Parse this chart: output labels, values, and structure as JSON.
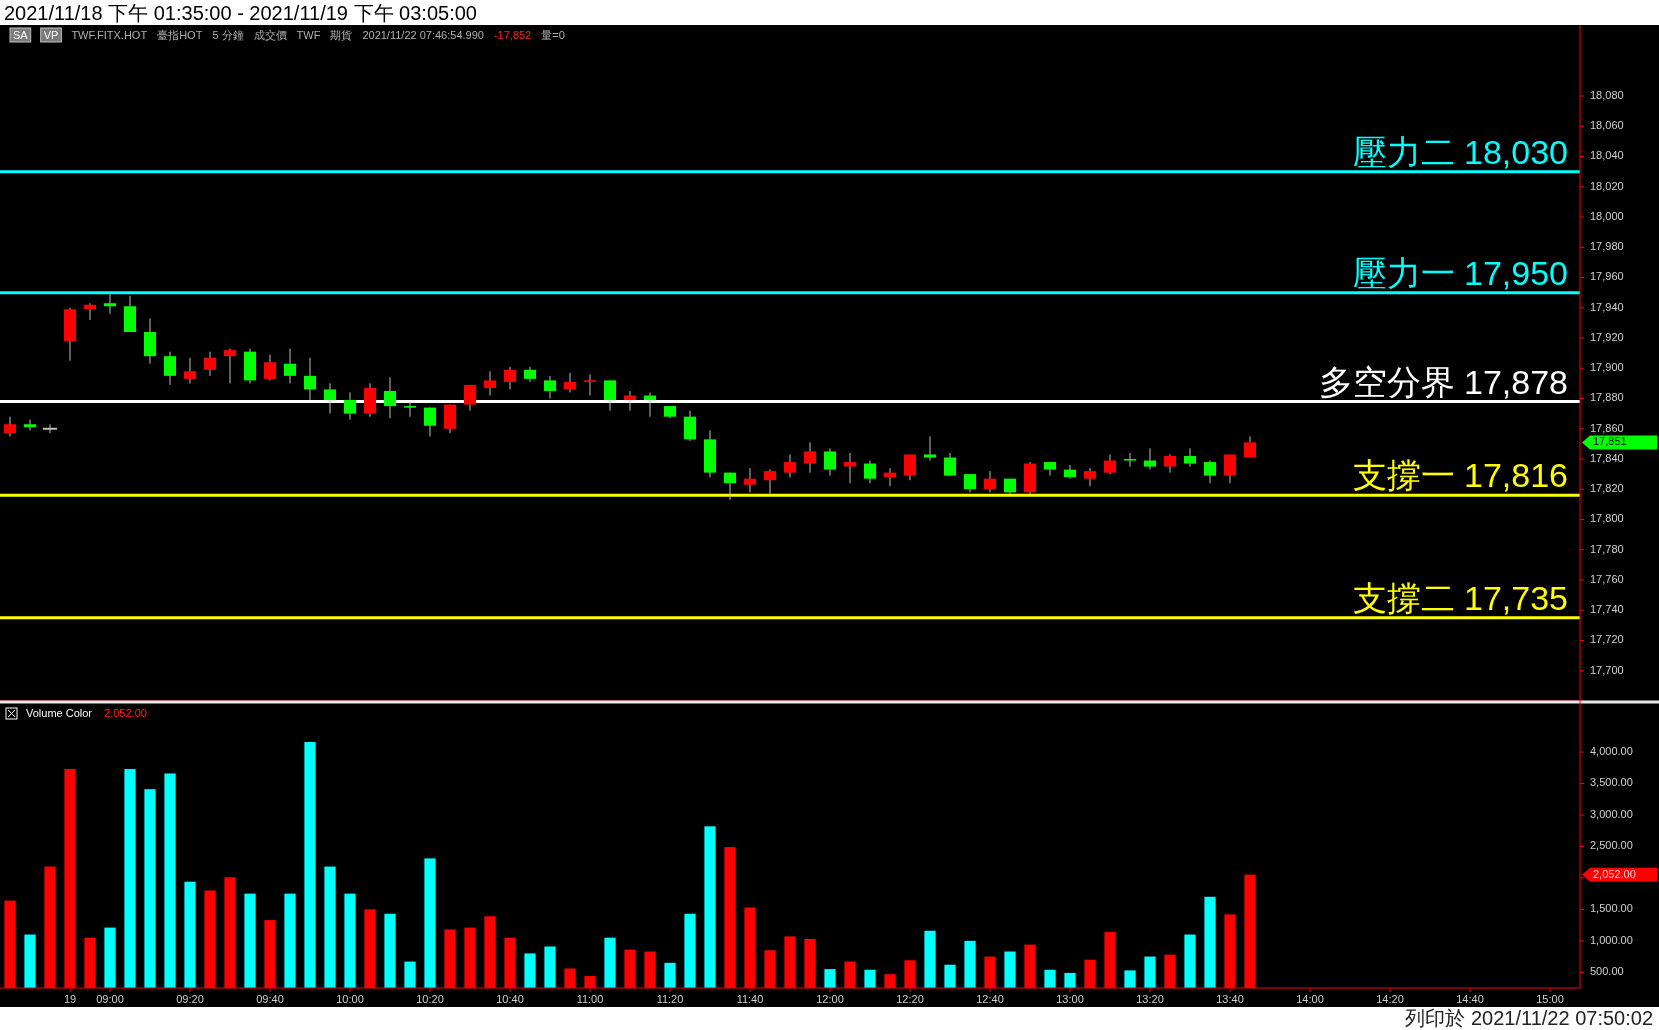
{
  "chart_data": [
    {
      "type": "candlestick",
      "title": "2021/11/18 下午 01:35:00 - 2021/11/19 下午 03:05:00",
      "categories": [
        null,
        null,
        null,
        null,
        null,
        null,
        null,
        null,
        null,
        null,
        null,
        null,
        null,
        null,
        null,
        null,
        null,
        null,
        null,
        null,
        null,
        null,
        null,
        null,
        null,
        null,
        null,
        null,
        null,
        null,
        null,
        null,
        null,
        null,
        null,
        null,
        null,
        null,
        null,
        null,
        null,
        null,
        null,
        null,
        null,
        null,
        null,
        null,
        null,
        null,
        null,
        null,
        null,
        null,
        null,
        null,
        null,
        null,
        null,
        null,
        null,
        null,
        null,
        null,
        null,
        null,
        null,
        null,
        null,
        null,
        null,
        null,
        null,
        null,
        null,
        null,
        null,
        null,
        null
      ],
      "ohlc": [
        [
          17857,
          17868,
          17855,
          17863
        ],
        [
          17863,
          17866,
          17859,
          17861
        ],
        [
          17860,
          17863,
          17857,
          17860
        ],
        [
          17918,
          17940,
          17905,
          17939
        ],
        [
          17939,
          17943,
          17932,
          17942
        ],
        [
          17943,
          17949,
          17936,
          17941
        ],
        [
          17941,
          17948,
          17924,
          17924
        ],
        [
          17924,
          17933,
          17903,
          17908
        ],
        [
          17908,
          17911,
          17889,
          17895
        ],
        [
          17893,
          17907,
          17890,
          17898
        ],
        [
          17899,
          17911,
          17895,
          17907
        ],
        [
          17908,
          17913,
          17890,
          17912
        ],
        [
          17911,
          17913,
          17890,
          17892
        ],
        [
          17893,
          17909,
          17892,
          17904
        ],
        [
          17903,
          17913,
          17890,
          17895
        ],
        [
          17895,
          17907,
          17879,
          17886
        ],
        [
          17886,
          17890,
          17870,
          17879
        ],
        [
          17879,
          17884,
          17866,
          17870
        ],
        [
          17870,
          17890,
          17868,
          17887
        ],
        [
          17885,
          17894,
          17867,
          17875
        ],
        [
          17875,
          17878,
          17868,
          17874
        ],
        [
          17874,
          17874,
          17855,
          17862
        ],
        [
          17860,
          17876,
          17857,
          17876
        ],
        [
          17876,
          17889,
          17872,
          17889
        ],
        [
          17887,
          17898,
          17882,
          17892
        ],
        [
          17891,
          17901,
          17886,
          17899
        ],
        [
          17899,
          17901,
          17891,
          17893
        ],
        [
          17892,
          17895,
          17880,
          17885
        ],
        [
          17886,
          17897,
          17884,
          17891
        ],
        [
          17891,
          17896,
          17882,
          17892
        ],
        [
          17892,
          17892,
          17872,
          17879
        ],
        [
          17879,
          17885,
          17872,
          17882
        ],
        [
          17882,
          17884,
          17868,
          17879
        ],
        [
          17875,
          17875,
          17867,
          17868
        ],
        [
          17868,
          17872,
          17852,
          17853
        ],
        [
          17853,
          17859,
          17828,
          17831
        ],
        [
          17831,
          17831,
          17813,
          17824
        ],
        [
          17823,
          17834,
          17818,
          17827
        ],
        [
          17826,
          17833,
          17817,
          17832
        ],
        [
          17831,
          17843,
          17828,
          17838
        ],
        [
          17837,
          17851,
          17831,
          17845
        ],
        [
          17845,
          17847,
          17829,
          17833
        ],
        [
          17835,
          17844,
          17824,
          17838
        ],
        [
          17837,
          17839,
          17824,
          17827
        ],
        [
          17828,
          17834,
          17822,
          17831
        ],
        [
          17829,
          17843,
          17826,
          17843
        ],
        [
          17843,
          17855,
          17839,
          17841
        ],
        [
          17841,
          17844,
          17829,
          17829
        ],
        [
          17830,
          17830,
          17818,
          17820
        ],
        [
          17820,
          17832,
          17818,
          17827
        ],
        [
          17827,
          17827,
          17817,
          17818
        ],
        [
          17818,
          17838,
          17817,
          17837
        ],
        [
          17838,
          17838,
          17829,
          17833
        ],
        [
          17833,
          17836,
          17827,
          17828
        ],
        [
          17827,
          17834,
          17822,
          17832
        ],
        [
          17831,
          17843,
          17830,
          17839
        ],
        [
          17840,
          17844,
          17835,
          17839
        ],
        [
          17839,
          17847,
          17833,
          17835
        ],
        [
          17835,
          17843,
          17831,
          17842
        ],
        [
          17842,
          17847,
          17835,
          17837
        ],
        [
          17838,
          17839,
          17824,
          17829
        ],
        [
          17829,
          17843,
          17824,
          17843
        ],
        [
          17841,
          17855,
          17841,
          17851
        ],
        null,
        null,
        null,
        null,
        null,
        null,
        null,
        null,
        null,
        null,
        null,
        null,
        null,
        null,
        null,
        null
      ],
      "colors": [
        "#ff0000",
        "#00ff00",
        "#c0c0c0",
        "#ff0000",
        "#ff0000",
        "#00ff00",
        "#00ff00",
        "#00ff00",
        "#00ff00",
        "#ff0000",
        "#ff0000",
        "#ff0000",
        "#00ff00",
        "#ff0000",
        "#00ff00",
        "#00ff00",
        "#00ff00",
        "#00ff00",
        "#ff0000",
        "#00ff00",
        "#00ff00",
        "#00ff00",
        "#ff0000",
        "#ff0000",
        "#ff0000",
        "#ff0000",
        "#00ff00",
        "#00ff00",
        "#ff0000",
        "#ff0000",
        "#00ff00",
        "#ff0000",
        "#00ff00",
        "#00ff00",
        "#00ff00",
        "#00ff00",
        "#00ff00",
        "#ff0000",
        "#ff0000",
        "#ff0000",
        "#ff0000",
        "#00ff00",
        "#ff0000",
        "#00ff00",
        "#ff0000",
        "#ff0000",
        "#00ff00",
        "#00ff00",
        "#00ff00",
        "#ff0000",
        "#00ff00",
        "#ff0000",
        "#00ff00",
        "#00ff00",
        "#ff0000",
        "#ff0000",
        "#00ff00",
        "#00ff00",
        "#ff0000",
        "#00ff00",
        "#00ff00",
        "#ff0000",
        "#ff0000",
        null,
        null,
        null,
        null,
        null,
        null,
        null,
        null,
        null,
        null,
        null,
        null,
        null,
        null,
        null,
        null
      ],
      "ylim": [
        17680,
        18125
      ],
      "yticks": [
        {
          "value": 17680,
          "label": null
        },
        {
          "value": 17700,
          "label": "17,700"
        },
        {
          "value": 17720,
          "label": "17,720"
        },
        {
          "value": 17740,
          "label": "17,740"
        },
        {
          "value": 17760,
          "label": "17,760"
        },
        {
          "value": 17780,
          "label": "17,780"
        },
        {
          "value": 17800,
          "label": "17,800"
        },
        {
          "value": 17820,
          "label": "17,820"
        },
        {
          "value": 17840,
          "label": "17,840"
        },
        {
          "value": 17860,
          "label": "17,860"
        },
        {
          "value": 17880,
          "label": "17,880"
        },
        {
          "value": 17900,
          "label": "17,900"
        },
        {
          "value": 17920,
          "label": "17,920"
        },
        {
          "value": 17940,
          "label": "17,940"
        },
        {
          "value": 17960,
          "label": "17,960"
        },
        {
          "value": 17980,
          "label": "17,980"
        },
        {
          "value": 18000,
          "label": "18,000"
        },
        {
          "value": 18020,
          "label": "18,020"
        },
        {
          "value": 18040,
          "label": "18,040"
        },
        {
          "value": 18060,
          "label": "18,060"
        },
        {
          "value": 18080,
          "label": "18,080"
        }
      ],
      "ref_lines": [
        {
          "axis": "y",
          "value": 18030,
          "label": "壓力二 18,030",
          "color": "#00ffff"
        },
        {
          "axis": "y",
          "value": 17950,
          "label": "壓力一 17,950",
          "color": "#00ffff"
        },
        {
          "axis": "y",
          "value": 17878,
          "label": "多空分界 17,878",
          "color": "#ffffff"
        },
        {
          "axis": "y",
          "value": 17816,
          "label": "支撐一 17,816",
          "color": "#ffff00"
        },
        {
          "axis": "y",
          "value": 17735,
          "label": "支撐二 17,735",
          "color": "#ffff00"
        }
      ],
      "annotations": [
        "SA",
        "VP",
        "TWF.FITX.HOT",
        "臺指HOT",
        "5 分鐘",
        "成交價",
        "TWF",
        "期貨",
        "2021/11/22 07:46:54.990",
        "-17,852",
        "量=0",
        "17,851"
      ],
      "tick_labels": "y"
    },
    {
      "type": "bar",
      "title": "Volume Color",
      "categories": [
        null,
        null,
        null,
        "19",
        null,
        "09:00",
        null,
        null,
        null,
        "09:20",
        null,
        null,
        null,
        "09:40",
        null,
        null,
        null,
        "10:00",
        null,
        null,
        null,
        "10:20",
        null,
        null,
        null,
        "10:40",
        null,
        null,
        null,
        "11:00",
        null,
        null,
        null,
        "11:20",
        null,
        null,
        null,
        "11:40",
        null,
        null,
        null,
        "12:00",
        null,
        null,
        null,
        "12:20",
        null,
        null,
        null,
        "12:40",
        null,
        null,
        null,
        "13:00",
        null,
        null,
        null,
        "13:20",
        null,
        null,
        null,
        "13:40",
        null,
        null,
        null,
        "14:00",
        null,
        null,
        null,
        "14:20",
        null,
        null,
        null,
        "14:40",
        null,
        null,
        null,
        "15:00",
        null
      ],
      "values": [
        1640,
        1100,
        2180,
        3730,
        1050,
        1210,
        3730,
        3410,
        3660,
        1940,
        1800,
        2010,
        1750,
        1330,
        1750,
        4160,
        2180,
        1750,
        1500,
        1430,
        670,
        2310,
        1180,
        1210,
        1390,
        1050,
        800,
        910,
        560,
        440,
        1050,
        860,
        830,
        650,
        1430,
        2820,
        2490,
        1530,
        850,
        1070,
        1030,
        550,
        670,
        540,
        470,
        690,
        1160,
        620,
        1000,
        750,
        830,
        940,
        540,
        490,
        700,
        1140,
        530,
        750,
        780,
        1100,
        1700,
        1420,
        2052,
        null,
        null,
        null,
        null,
        null,
        null,
        null,
        null,
        null,
        null,
        null,
        null,
        null,
        null,
        null,
        null
      ],
      "colors": [
        "#ff0000",
        "#00ffff",
        "#ff0000",
        "#ff0000",
        "#ff0000",
        "#00ffff",
        "#00ffff",
        "#00ffff",
        "#00ffff",
        "#00ffff",
        "#ff0000",
        "#ff0000",
        "#00ffff",
        "#ff0000",
        "#00ffff",
        "#00ffff",
        "#00ffff",
        "#00ffff",
        "#ff0000",
        "#00ffff",
        "#00ffff",
        "#00ffff",
        "#ff0000",
        "#ff0000",
        "#ff0000",
        "#ff0000",
        "#00ffff",
        "#00ffff",
        "#ff0000",
        "#ff0000",
        "#00ffff",
        "#ff0000",
        "#ff0000",
        "#00ffff",
        "#00ffff",
        "#00ffff",
        "#ff0000",
        "#ff0000",
        "#ff0000",
        "#ff0000",
        "#ff0000",
        "#00ffff",
        "#ff0000",
        "#00ffff",
        "#ff0000",
        "#ff0000",
        "#00ffff",
        "#00ffff",
        "#00ffff",
        "#ff0000",
        "#00ffff",
        "#ff0000",
        "#00ffff",
        "#00ffff",
        "#ff0000",
        "#ff0000",
        "#00ffff",
        "#00ffff",
        "#ff0000",
        "#00ffff",
        "#00ffff",
        "#ff0000",
        "#ff0000",
        null,
        null,
        null,
        null,
        null,
        null,
        null,
        null,
        null,
        null,
        null,
        null,
        null,
        null,
        null,
        null
      ],
      "ylim": [
        250,
        4780
      ],
      "yticks": [
        {
          "value": 500,
          "label": "500.00"
        },
        {
          "value": 1000,
          "label": "1,000.00"
        },
        {
          "value": 1500,
          "label": "1,500.00"
        },
        {
          "value": 2000,
          "label": null
        },
        {
          "value": 2500,
          "label": "2,500.00"
        },
        {
          "value": 3000,
          "label": "3,000.00"
        },
        {
          "value": 3500,
          "label": "3,500.00"
        },
        {
          "value": 4000,
          "label": "4,000.00"
        }
      ],
      "annotations": [
        "2,052.00",
        "2,052.00",
        "列印於 2021/11/22 07:50:02"
      ]
    }
  ]
}
